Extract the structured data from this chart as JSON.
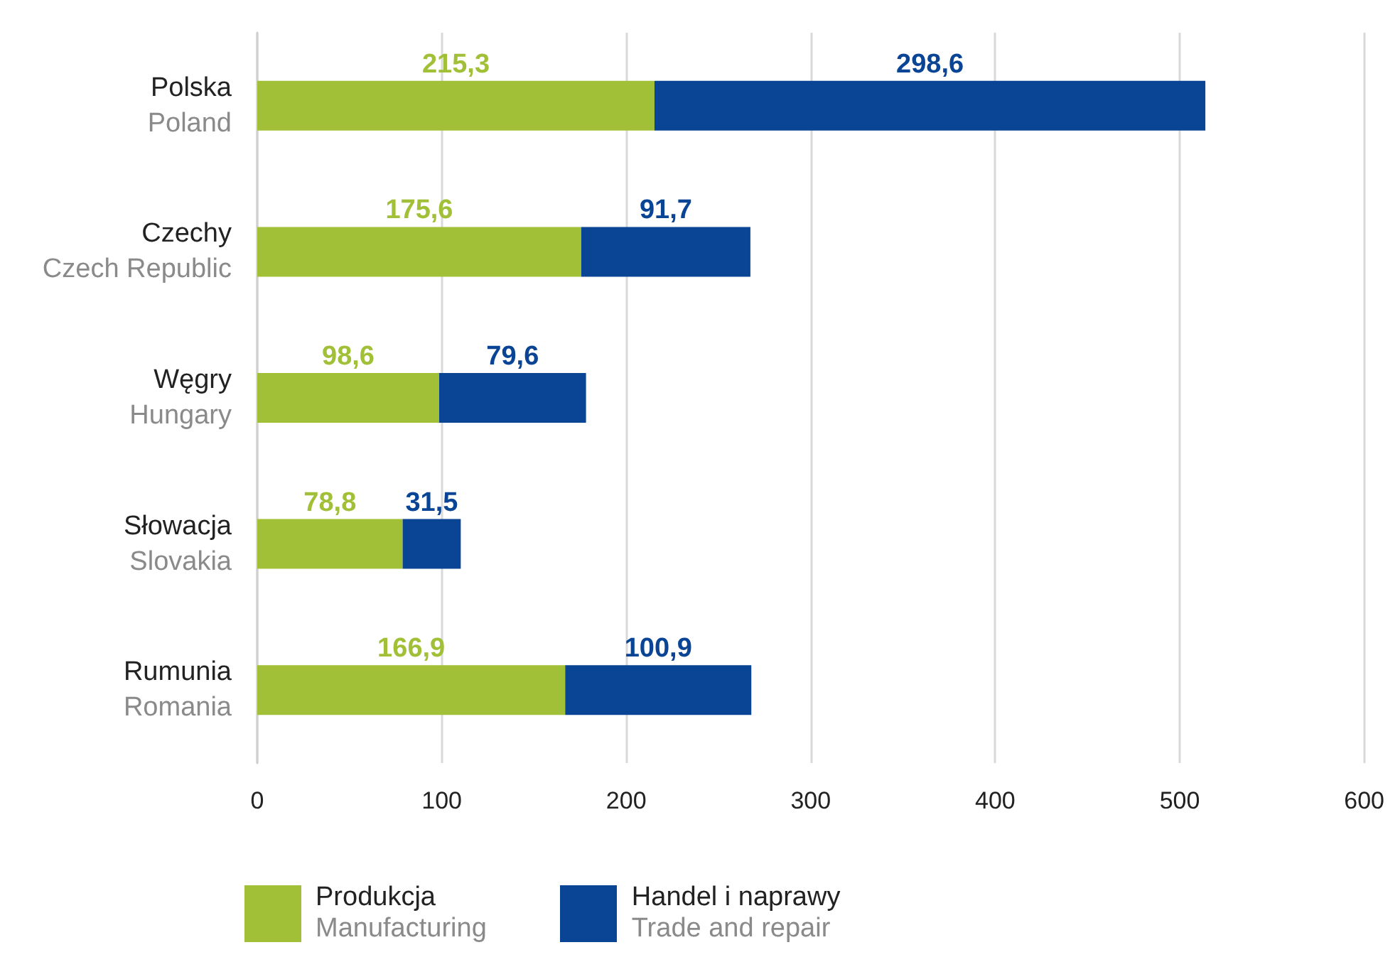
{
  "chart_data": {
    "type": "bar",
    "orientation": "horizontal",
    "stacked": true,
    "categories": [
      "Polska\nPoland",
      "Czechy\nCzech Republic",
      "Węgry\nHungary",
      "Słowacja\nSlovakia",
      "Rumunia\nRomania"
    ],
    "series": [
      {
        "name": "Produkcja\nManufacturing",
        "color": "#a2c037",
        "values": [
          215.3,
          175.6,
          98.6,
          78.8,
          166.9
        ],
        "value_labels": [
          "215,3",
          "175,6",
          "98,6",
          "78,8",
          "166,9"
        ]
      },
      {
        "name": "Handel i naprawy\nTrade and repair",
        "color": "#0a4595",
        "values": [
          298.6,
          91.7,
          79.6,
          31.5,
          100.9
        ],
        "value_labels": [
          "298,6",
          "91,7",
          "79,6",
          "31,5",
          "100,9"
        ]
      }
    ],
    "xlim": [
      0,
      600
    ],
    "xticks": [
      0,
      100,
      200,
      300,
      400,
      500,
      600
    ],
    "grid": "x",
    "legend": "bottom left"
  }
}
